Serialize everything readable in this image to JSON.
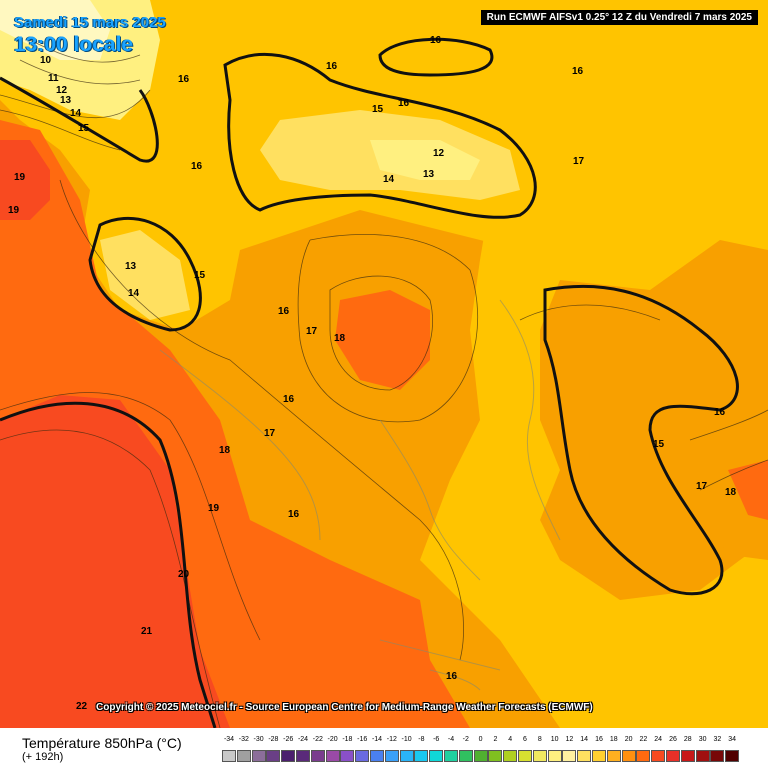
{
  "header": {
    "date_line_1": "Samedi 15 mars 2025",
    "date_line_2": "13:00 locale",
    "run_info": "Run ECMWF AIFSv1 0.25° 12 Z du Vendredi 7 mars 2025"
  },
  "footer": {
    "copyright": "Copyright © 2025 Meteociel.fr - Source European Centre for Medium-Range Weather Forecasts (ECMWF)"
  },
  "legend": {
    "title": "Température 850hPa (°C)",
    "subtitle": "(+ 192h)",
    "ticks": [
      "-34",
      "-32",
      "-30",
      "-28",
      "-26",
      "-24",
      "-22",
      "-20",
      "-18",
      "-16",
      "-14",
      "-12",
      "-10",
      "-8",
      "-6",
      "-4",
      "-2",
      "0",
      "2",
      "4",
      "6",
      "8",
      "10",
      "12",
      "14",
      "16",
      "18",
      "20",
      "22",
      "24",
      "26",
      "28",
      "30",
      "32",
      "34"
    ],
    "colors": [
      "#c8c8c8",
      "#a0a0a0",
      "#8c6e9a",
      "#6a3f86",
      "#4b1f6e",
      "#5a2a7a",
      "#7a3c8e",
      "#9a4aa6",
      "#8a50c8",
      "#6a6ae0",
      "#4a80f0",
      "#3aa0f8",
      "#2ab4f8",
      "#1ac8f0",
      "#10d8d8",
      "#20d0a0",
      "#30c060",
      "#50b030",
      "#80c020",
      "#b0d020",
      "#d8e030",
      "#f0e860",
      "#fff080",
      "#fff0a0",
      "#ffe060",
      "#ffd030",
      "#ffb020",
      "#ff9010",
      "#ff6a10",
      "#f84a20",
      "#e83028",
      "#c81818",
      "#a01010",
      "#780808",
      "#500000"
    ]
  },
  "map": {
    "contour_labels": [
      "10",
      "11",
      "12",
      "13",
      "14",
      "15",
      "16",
      "16",
      "16",
      "19",
      "19",
      "16",
      "15",
      "16",
      "12",
      "13",
      "14",
      "13",
      "14",
      "15",
      "16",
      "17",
      "18",
      "16",
      "17",
      "18",
      "19",
      "16",
      "20",
      "21",
      "22",
      "16",
      "17",
      "16",
      "15",
      "16",
      "17",
      "18"
    ]
  }
}
